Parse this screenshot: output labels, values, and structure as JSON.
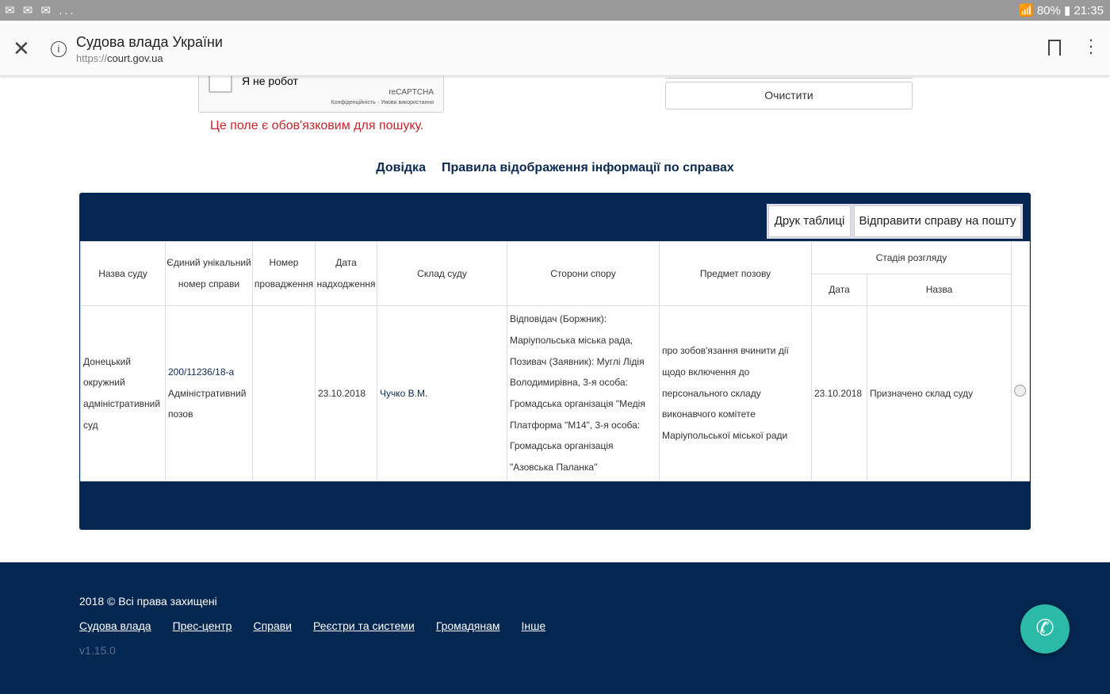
{
  "statusbar": {
    "left": "✉ ✉ ✉ ...",
    "right": "📶 80% ▮ 21:35",
    "battery": "80%",
    "time": "21:35"
  },
  "browser": {
    "title": "Судова влада України",
    "url_scheme": "https://",
    "url_host": "court.gov.ua"
  },
  "captcha": {
    "label": "Я не робот",
    "brand": "reCAPTCHA",
    "terms": "Конфіденційність - Умови використання"
  },
  "error": "Це поле є обов'язковим для пошуку.",
  "clear_button": "Очистити",
  "links": [
    "Довідка",
    "Правила відображення інформації по справах"
  ],
  "panel": {
    "print_button": "Друк таблиці",
    "send_button": "Відправити справу на пошту"
  },
  "table": {
    "headers": {
      "court": "Назва суду",
      "case_number": "Єдиний унікальний номер справи",
      "proceeding": "Номер провадження",
      "date_received": "Дата надходження",
      "judges": "Склад суду",
      "parties": "Сторони спору",
      "subject": "Предмет позову",
      "stage": "Стадія розгляду",
      "stage_date": "Дата",
      "stage_name": "Назва"
    },
    "rows": [
      {
        "court": "Донецький окружний адміністративний суд",
        "case_number": "200/11236/18-а",
        "case_type": "Адміністративний позов",
        "proceeding": "",
        "date_received": "23.10.2018",
        "judges": "Чучко В.М.",
        "parties": "Відповідач (Боржник): Маріупольська міська рада, Позивач (Заявник): Муглі Лідія Володимирівна, 3-я особа: Громадська організація \"Медія Платформа \"М14\", 3-я особа: Громадська організація \"Азовська Паланка\"",
        "subject": "про зобов'язання вчинити дії щодо включення до персонального складу виконавчого комітете Маріупольської міської ради",
        "stage_date": "23.10.2018",
        "stage_name": "Призначено склад суду",
        "selected": false
      }
    ]
  },
  "footer": {
    "copyright": "2018 © Всі права захищені",
    "links": [
      "Судова влада",
      "Прес-центр",
      "Справи",
      "Реєстри та системи",
      "Громадянам",
      "Інше"
    ],
    "version": "v1.15.0"
  },
  "colors": {
    "navy": "#062752",
    "error": "#c8232c",
    "chat": "#2bbaa8"
  }
}
